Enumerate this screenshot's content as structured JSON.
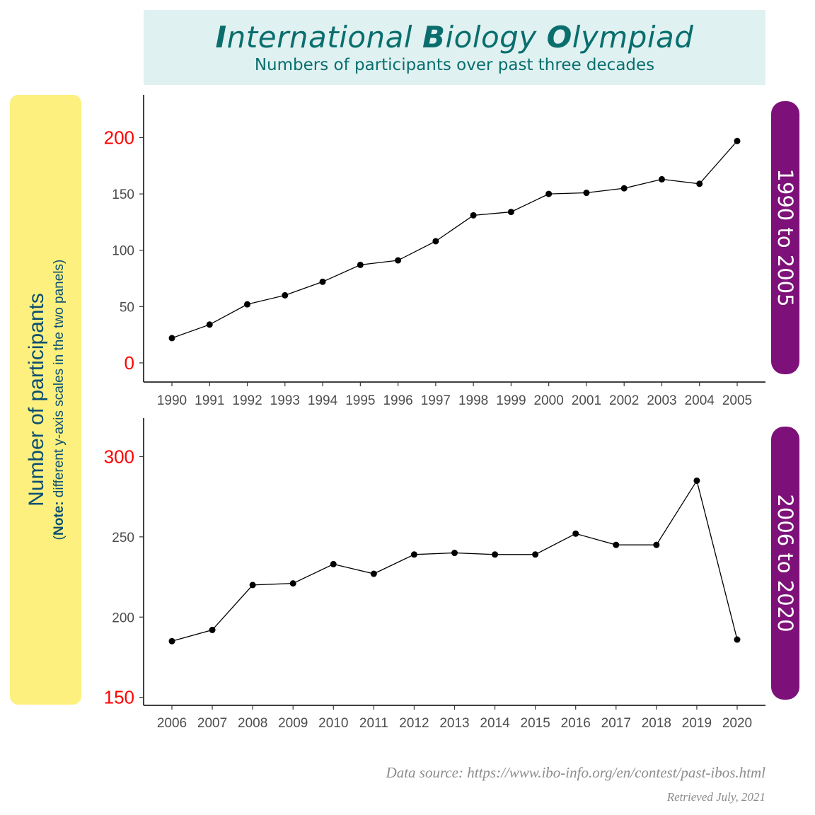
{
  "title": {
    "main_parts": [
      {
        "text": "I",
        "bold": true
      },
      {
        "text": "nternational ",
        "bold": false
      },
      {
        "text": "B",
        "bold": true
      },
      {
        "text": "iology ",
        "bold": false
      },
      {
        "text": "O",
        "bold": true
      },
      {
        "text": "lympiad",
        "bold": false
      }
    ],
    "subtitle": "Numbers of participants over past three decades"
  },
  "y_axis": {
    "title": "Number of participants",
    "note_prefix": "(",
    "note_bold": "Note:",
    "note_text": " different y-axis scales in the two panels)"
  },
  "colors": {
    "title_bg": "#dff1f0",
    "title_text": "#0a6e6e",
    "ylab_bg": "#fdf07e",
    "ylab_text": "#0b4f72",
    "strip_bg": "#7d1179",
    "highlight_tick": "#ff0000",
    "normal_tick": "#4d4d4d",
    "series": "#000000"
  },
  "chart_data": [
    {
      "type": "line",
      "panel_label": "1990 to 2005",
      "categories": [
        "1990",
        "1991",
        "1992",
        "1993",
        "1994",
        "1995",
        "1996",
        "1997",
        "1998",
        "1999",
        "2000",
        "2001",
        "2002",
        "2003",
        "2004",
        "2005"
      ],
      "values": [
        22,
        34,
        52,
        60,
        72,
        87,
        91,
        108,
        131,
        134,
        150,
        151,
        155,
        163,
        159,
        197
      ],
      "ylim": [
        -17,
        238
      ],
      "yticks": [
        0,
        50,
        100,
        150,
        200
      ],
      "highlighted_yticks": [
        0,
        200
      ],
      "grid": false
    },
    {
      "type": "line",
      "panel_label": "2006 to 2020",
      "categories": [
        "2006",
        "2007",
        "2008",
        "2009",
        "2010",
        "2011",
        "2012",
        "2013",
        "2014",
        "2015",
        "2016",
        "2017",
        "2018",
        "2019",
        "2020"
      ],
      "values": [
        185,
        192,
        220,
        221,
        233,
        227,
        239,
        240,
        239,
        239,
        252,
        245,
        245,
        285,
        186
      ],
      "ylim": [
        145,
        324
      ],
      "yticks": [
        150,
        200,
        250,
        300
      ],
      "highlighted_yticks": [
        150,
        300
      ],
      "grid": false
    }
  ],
  "footer": {
    "source": "Data source: https://www.ibo-info.org/en/contest/past-ibos.html",
    "retrieved": "Retrieved July, 2021"
  }
}
